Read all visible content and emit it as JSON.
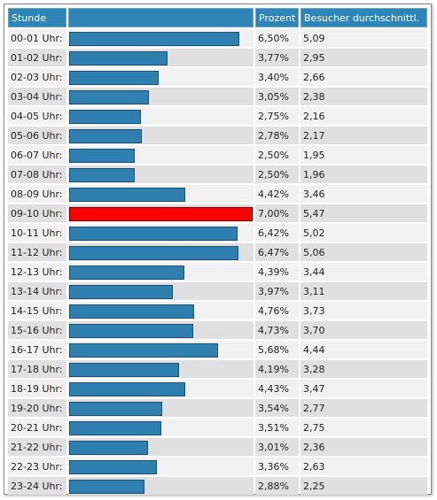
{
  "headers": {
    "hour": "Stunde",
    "bar": "",
    "percent": "Prozent",
    "avg": "Besucher durchschnittl."
  },
  "colors": {
    "header_bg": "#2f85b8",
    "bar": "#2f7fb0",
    "bar_highlight": "#ff0000",
    "row_odd": "#f1f1f1",
    "row_even": "#e0e0e0"
  },
  "chart_data": {
    "type": "bar",
    "orientation": "horizontal",
    "xlim": [
      0,
      7.0
    ],
    "highlight_category": "09-10 Uhr:",
    "categories": [
      "00-01 Uhr:",
      "01-02 Uhr:",
      "02-03 Uhr:",
      "03-04 Uhr:",
      "04-05 Uhr:",
      "05-06 Uhr:",
      "06-07 Uhr:",
      "07-08 Uhr:",
      "08-09 Uhr:",
      "09-10 Uhr:",
      "10-11 Uhr:",
      "11-12 Uhr:",
      "12-13 Uhr:",
      "13-14 Uhr:",
      "14-15 Uhr:",
      "15-16 Uhr:",
      "16-17 Uhr:",
      "17-18 Uhr:",
      "18-19 Uhr:",
      "19-20 Uhr:",
      "20-21 Uhr:",
      "21-22 Uhr:",
      "22-23 Uhr:",
      "23-24 Uhr:"
    ],
    "values": [
      6.5,
      3.77,
      3.4,
      3.05,
      2.75,
      2.78,
      2.5,
      2.5,
      4.42,
      7.0,
      6.42,
      6.47,
      4.39,
      3.97,
      4.76,
      4.73,
      5.68,
      4.19,
      4.43,
      3.54,
      3.51,
      3.01,
      3.36,
      2.88
    ],
    "percent_labels": [
      "6,50%",
      "3,77%",
      "3,40%",
      "3,05%",
      "2,75%",
      "2,78%",
      "2,50%",
      "2,50%",
      "4,42%",
      "7,00%",
      "6,42%",
      "6,47%",
      "4,39%",
      "3,97%",
      "4,76%",
      "4,73%",
      "5,68%",
      "4,19%",
      "4,43%",
      "3,54%",
      "3,51%",
      "3,01%",
      "3,36%",
      "2,88%"
    ],
    "avg_labels": [
      "5,09",
      "2,95",
      "2,66",
      "2,38",
      "2,16",
      "2,17",
      "1,95",
      "1,96",
      "3,46",
      "5,47",
      "5,02",
      "5,06",
      "3,44",
      "3,11",
      "3,73",
      "3,70",
      "4,44",
      "3,28",
      "3,47",
      "2,77",
      "2,75",
      "2,36",
      "2,63",
      "2,25"
    ]
  }
}
